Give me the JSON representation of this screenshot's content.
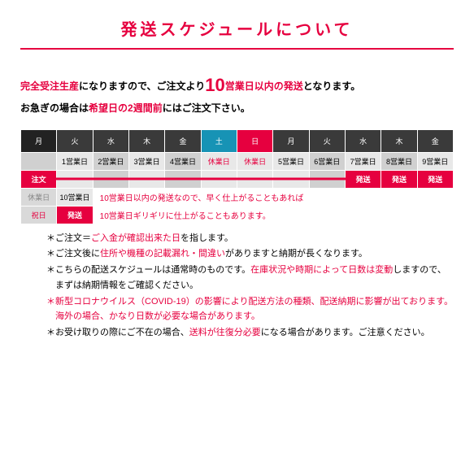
{
  "colors": {
    "pink": "#e6003f",
    "dark": "#222222",
    "gray_hdr": "#3a3a3a",
    "sat": "#1793b5",
    "sun": "#e6003f",
    "cell_lt": "#e8e8e8",
    "cell_md": "#d0d0d0",
    "holiday_bg": "#d9d9d9",
    "holiday_txt": "#888888",
    "text": "#222222"
  },
  "title": "発送スケジュールについて",
  "intro": {
    "p1a": "完全受注生産",
    "p1b": "になりますので、ご注文より",
    "p1c": "10",
    "p1d": "営業日以内の発送",
    "p1e": "となります。",
    "p2a": "お急ぎの場合は",
    "p2b": "希望日の2週間前",
    "p2c": "にはご注文下さい。"
  },
  "days": [
    "月",
    "火",
    "水",
    "木",
    "金",
    "土",
    "日",
    "月",
    "火",
    "水",
    "木",
    "金"
  ],
  "biz_row": [
    "",
    "1営業日",
    "2営業日",
    "3営業日",
    "4営業日",
    "休業日",
    "休業日",
    "5営業日",
    "6営業日",
    "7営業日",
    "8営業日",
    "9営業日"
  ],
  "order_label": "注文",
  "ship_label": "発送",
  "holiday_label": "休業日",
  "holiday2_label": "祝日",
  "biz10": "10営業日",
  "note_inline1": "10営業日以内の発送なので、早く仕上がることもあれば",
  "note_inline2": "10営業日ギリギリに仕上がることもあります。",
  "notes": [
    {
      "pre": "＊ご注文＝",
      "hl": "ご入金が確認出来た日",
      "post": "を指します。"
    },
    {
      "pre": "＊ご注文後に",
      "hl": "住所や機種の記載漏れ・間違い",
      "post": "がありますと納期が長くなります。"
    },
    {
      "pre": "＊こちらの配送スケジュールは通常時のものです。",
      "hl": "在庫状況や時期によって日数は変動",
      "post": "しますので、まずは納期情報をご確認ください。"
    },
    {
      "all_hl": "＊新型コロナウイルス（COVID-19）の影響により配送方法の種類、配送納期に影響が出ております。海外の場合、かなり日数が必要な場合があります。"
    },
    {
      "pre": "＊お受け取りの際にご不在の場合、",
      "hl": "送料が往復分必要",
      "post": "になる場合があります。ご注意ください。"
    }
  ]
}
